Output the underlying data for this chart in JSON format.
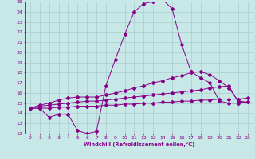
{
  "bg_color": "#c8e8e8",
  "line_color": "#880088",
  "grid_color": "#aacccc",
  "x_values": [
    0,
    1,
    2,
    3,
    4,
    5,
    6,
    7,
    8,
    9,
    10,
    11,
    12,
    13,
    14,
    15,
    16,
    17,
    18,
    19,
    20,
    21,
    22,
    23
  ],
  "line_main": [
    14.5,
    14.5,
    13.6,
    13.9,
    13.9,
    12.3,
    12.0,
    12.2,
    16.7,
    19.3,
    21.8,
    24.0,
    24.8,
    25.0,
    25.2,
    24.3,
    20.8,
    18.1,
    17.5,
    17.0,
    15.2,
    15.0,
    15.0,
    null
  ],
  "line_avg1": [
    14.5,
    14.8,
    15.0,
    15.3,
    15.5,
    15.6,
    15.6,
    15.6,
    15.8,
    16.0,
    16.2,
    16.5,
    16.7,
    17.0,
    17.2,
    17.5,
    17.7,
    18.0,
    18.1,
    17.8,
    17.2,
    16.5,
    15.2,
    15.1
  ],
  "line_avg2": [
    14.5,
    14.7,
    14.8,
    14.9,
    15.0,
    15.1,
    15.2,
    15.2,
    15.3,
    15.4,
    15.5,
    15.6,
    15.7,
    15.8,
    15.9,
    16.0,
    16.1,
    16.2,
    16.3,
    16.5,
    16.6,
    16.7,
    15.1,
    15.1
  ],
  "line_flat": [
    14.5,
    14.5,
    14.5,
    14.6,
    14.6,
    14.7,
    14.7,
    14.7,
    14.8,
    14.8,
    14.9,
    14.9,
    15.0,
    15.0,
    15.1,
    15.1,
    15.2,
    15.2,
    15.3,
    15.3,
    15.4,
    15.4,
    15.4,
    15.5
  ],
  "ylim": [
    12,
    25
  ],
  "xlim": [
    -0.5,
    23.5
  ],
  "yticks": [
    12,
    13,
    14,
    15,
    16,
    17,
    18,
    19,
    20,
    21,
    22,
    23,
    24,
    25
  ],
  "xticks": [
    0,
    1,
    2,
    3,
    4,
    5,
    6,
    7,
    8,
    9,
    10,
    11,
    12,
    13,
    14,
    15,
    16,
    17,
    18,
    19,
    20,
    21,
    22,
    23
  ],
  "xlabel": "Windchill (Refroidissement éolien,°C)"
}
